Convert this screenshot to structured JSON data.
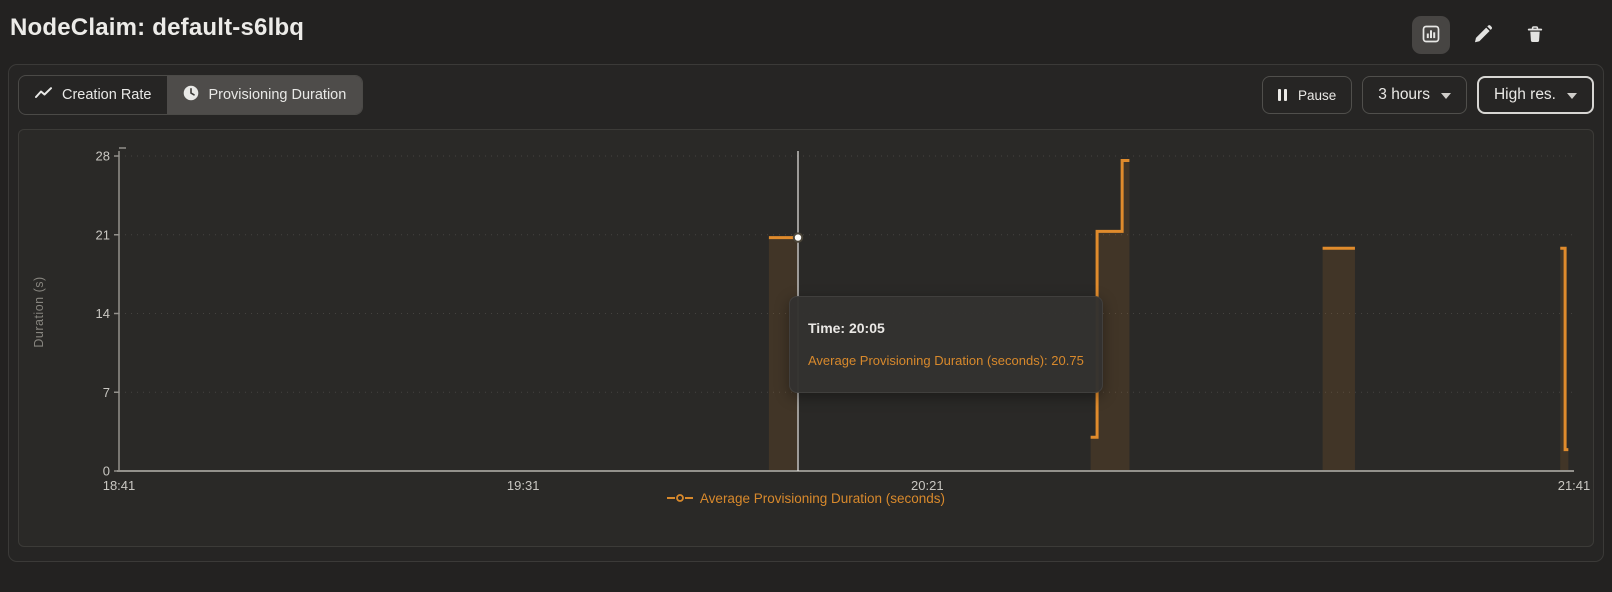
{
  "header": {
    "title": "NodeClaim: default-s6lbq",
    "actions": [
      {
        "name": "chart-view",
        "icon": "bar-chart-icon"
      },
      {
        "name": "edit",
        "icon": "pencil-icon"
      },
      {
        "name": "delete",
        "icon": "trash-icon"
      }
    ]
  },
  "toolbar": {
    "tabs": [
      {
        "label": "Creation Rate",
        "icon": "trend-line-icon",
        "active": false
      },
      {
        "label": "Provisioning Duration",
        "icon": "clock-icon",
        "active": true
      }
    ],
    "pause_label": "Pause",
    "range_label": "3 hours",
    "resolution_label": "High res."
  },
  "colors": {
    "accent_orange": "#d8892c",
    "line_orange": "#e08b2c",
    "area_fill": "rgba(224,139,44,0.13)",
    "axis": "#93918c",
    "grid": "#454340",
    "tick_text": "#c9c7c2",
    "crosshair": "#e9e7e3"
  },
  "chart_data": {
    "type": "area",
    "title": "",
    "xlabel": "",
    "ylabel": "Duration (s)",
    "ylim": [
      0,
      28
    ],
    "y_ticks": [
      0,
      7,
      14,
      21,
      28
    ],
    "x_domain_minutes": 180,
    "x_start_label": "18:41",
    "x_ticks": [
      {
        "label": "18:41",
        "t": 0
      },
      {
        "label": "19:31",
        "t": 50
      },
      {
        "label": "20:21",
        "t": 100
      },
      {
        "label": "21:41",
        "t": 180
      }
    ],
    "grid": "dotted-horizontal",
    "legend_position": "bottom-center",
    "legend": "Average Provisioning Duration (seconds)",
    "series": [
      {
        "name": "Average Provisioning Duration (seconds)",
        "color": "#e08b2c",
        "pulses": [
          {
            "points": [
              [
                80.4,
                20.75
              ],
              [
                83.9,
                20.75
              ]
            ]
          },
          {
            "points": [
              [
                120.2,
                3
              ],
              [
                121.0,
                3
              ],
              [
                121.0,
                21.3
              ],
              [
                124.1,
                21.3
              ],
              [
                124.1,
                27.6
              ],
              [
                125.0,
                27.6
              ]
            ]
          },
          {
            "points": [
              [
                148.9,
                19.8
              ],
              [
                152.9,
                19.8
              ]
            ]
          },
          {
            "points": [
              [
                178.3,
                19.8
              ],
              [
                178.9,
                19.8
              ],
              [
                178.9,
                1.9
              ],
              [
                179.3,
                1.9
              ]
            ]
          }
        ]
      }
    ],
    "crosshair": {
      "t": 84.0,
      "v": 20.75
    },
    "tooltip": {
      "time_label": "Time: 20:05",
      "value_label": "Average Provisioning Duration (seconds): 20.75"
    }
  }
}
